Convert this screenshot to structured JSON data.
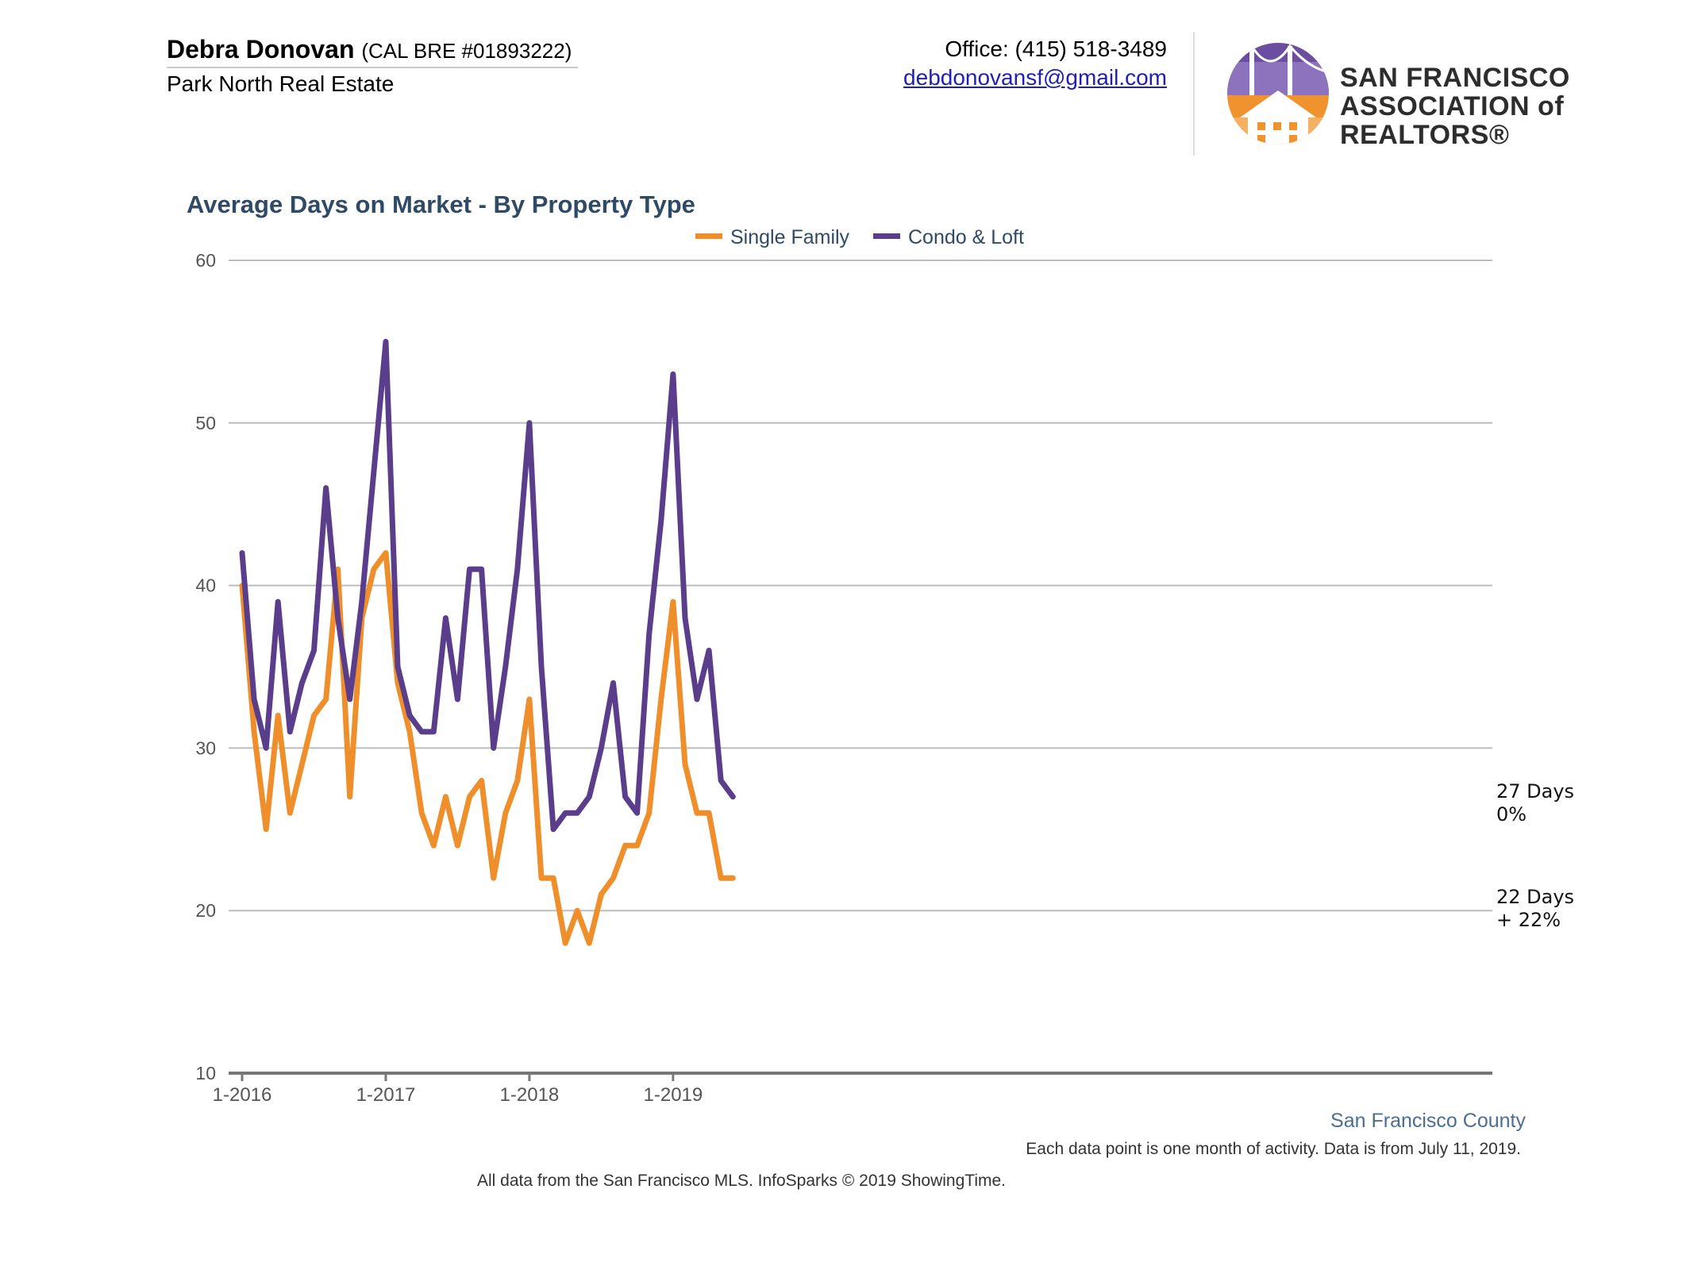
{
  "header": {
    "agent_name": "Debra Donovan",
    "agent_license": "(CAL BRE #01893222)",
    "agent_company": "Park North Real Estate",
    "phone": "Office: (415) 518-3489",
    "email": "debdonovansf@gmail.com",
    "association": {
      "line1": "SAN FRANCISCO",
      "line2": "ASSOCIATION of REALTORS®"
    }
  },
  "colors": {
    "single_family": "#ee8f2b",
    "condo_loft": "#5a3e8c",
    "title": "#2e4a66",
    "grid": "#bdbdbd"
  },
  "chart_data": {
    "type": "line",
    "title": "Average Days on Market - By Property Type",
    "xlabel": "",
    "ylabel": "",
    "ylim": [
      10,
      60
    ],
    "y_ticks": [
      10,
      20,
      30,
      40,
      50,
      60
    ],
    "x_tick_labels": [
      "1-2016",
      "1-2017",
      "1-2018",
      "1-2019"
    ],
    "x": [
      "1-2016",
      "2-2016",
      "3-2016",
      "4-2016",
      "5-2016",
      "6-2016",
      "7-2016",
      "8-2016",
      "9-2016",
      "10-2016",
      "11-2016",
      "12-2016",
      "1-2017",
      "2-2017",
      "3-2017",
      "4-2017",
      "5-2017",
      "6-2017",
      "7-2017",
      "8-2017",
      "9-2017",
      "10-2017",
      "11-2017",
      "12-2017",
      "1-2018",
      "2-2018",
      "3-2018",
      "4-2018",
      "5-2018",
      "6-2018",
      "7-2018",
      "8-2018",
      "9-2018",
      "10-2018",
      "11-2018",
      "12-2018",
      "1-2019",
      "2-2019",
      "3-2019",
      "4-2019",
      "5-2019",
      "6-2019"
    ],
    "legend_position": "top-center",
    "grid": true,
    "series": [
      {
        "name": "Single Family",
        "values": [
          40,
          31,
          25,
          32,
          26,
          29,
          32,
          33,
          41,
          27,
          38,
          41,
          42,
          34,
          31,
          26,
          24,
          27,
          24,
          27,
          28,
          22,
          26,
          28,
          33,
          22,
          22,
          18,
          20,
          18,
          21,
          22,
          24,
          24,
          26,
          33,
          39,
          29,
          26,
          26,
          22,
          22
        ],
        "end_label": [
          "22 Days",
          "+ 22%"
        ]
      },
      {
        "name": "Condo & Loft",
        "values": [
          42,
          33,
          30,
          39,
          31,
          34,
          36,
          46,
          38,
          33,
          39,
          47,
          55,
          35,
          32,
          31,
          31,
          38,
          33,
          41,
          41,
          30,
          35,
          41,
          50,
          35,
          25,
          26,
          26,
          27,
          30,
          34,
          27,
          26,
          37,
          44,
          53,
          38,
          33,
          36,
          28,
          27
        ],
        "end_label": [
          "27 Days",
          "0%"
        ]
      }
    ]
  },
  "footer": {
    "region": "San Francisco County",
    "note": "Each data point is one month of activity. Data is from July 11, 2019.",
    "source": "All data from the San Francisco MLS. InfoSparks © 2019 ShowingTime."
  }
}
